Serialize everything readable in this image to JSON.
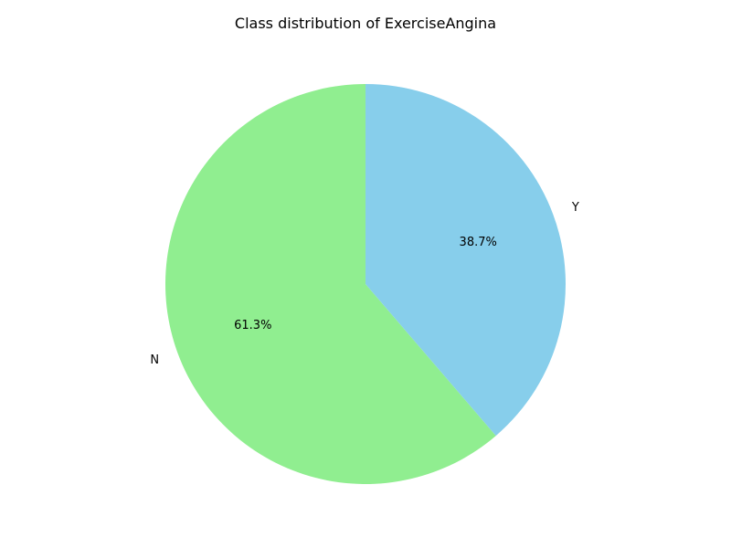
{
  "chart_data": {
    "type": "pie",
    "title": "Class distribution of ExerciseAngina",
    "start_angle_deg": 90,
    "direction": "counterclockwise",
    "slices": [
      {
        "label": "N",
        "value": 61.3,
        "pct_label": "61.3%",
        "color": "#90EE90"
      },
      {
        "label": "Y",
        "value": 38.7,
        "pct_label": "38.7%",
        "color": "#87CEEB"
      }
    ]
  }
}
